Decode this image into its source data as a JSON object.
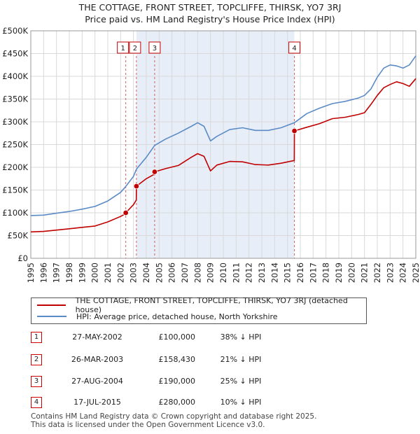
{
  "title_line1": "THE COTTAGE, FRONT STREET, TOPCLIFFE, THIRSK, YO7 3RJ",
  "title_line2": "Price paid vs. HM Land Registry's House Price Index (HPI)",
  "colors": {
    "property": "#c00000",
    "hpi": "#5b8bc7",
    "shade": "#e8eef8",
    "grid": "#d9d9d9"
  },
  "chart_data": {
    "type": "line",
    "xlim": [
      1995,
      2025
    ],
    "ylim": [
      0,
      500000
    ],
    "y_ticks": [
      0,
      50000,
      100000,
      150000,
      200000,
      250000,
      300000,
      350000,
      400000,
      450000,
      500000
    ],
    "y_tick_labels": [
      "£0",
      "£50K",
      "£100K",
      "£150K",
      "£200K",
      "£250K",
      "£300K",
      "£350K",
      "£400K",
      "£450K",
      "£500K"
    ],
    "x_ticks": [
      "1995",
      "1996",
      "1997",
      "1998",
      "1999",
      "2000",
      "2001",
      "2002",
      "2003",
      "2004",
      "2005",
      "2006",
      "2007",
      "2008",
      "2009",
      "2010",
      "2011",
      "2012",
      "2013",
      "2014",
      "2015",
      "2016",
      "2017",
      "2018",
      "2019",
      "2020",
      "2021",
      "2022",
      "2023",
      "2024",
      "2025"
    ],
    "shaded_region": [
      2003.23,
      2015.54
    ],
    "sale_markers": [
      {
        "label": "1",
        "x": 2002.4,
        "y": 100000
      },
      {
        "label": "2",
        "x": 2003.23,
        "y": 158430
      },
      {
        "label": "3",
        "x": 2004.65,
        "y": 190000
      },
      {
        "label": "4",
        "x": 2015.54,
        "y": 280000
      }
    ],
    "series": [
      {
        "name": "THE COTTAGE, FRONT STREET, TOPCLIFFE, THIRSK, YO7 3RJ (detached house)",
        "color": "#c00000",
        "points": [
          [
            1995.0,
            58000
          ],
          [
            1996.0,
            59000
          ],
          [
            1997.0,
            62000
          ],
          [
            1998.0,
            65000
          ],
          [
            1999.0,
            68000
          ],
          [
            2000.0,
            71000
          ],
          [
            2001.0,
            80000
          ],
          [
            2002.0,
            92000
          ],
          [
            2002.39,
            98000
          ],
          [
            2002.4,
            100000
          ],
          [
            2003.0,
            118000
          ],
          [
            2003.22,
            128000
          ],
          [
            2003.23,
            158430
          ],
          [
            2004.0,
            175000
          ],
          [
            2004.64,
            185000
          ],
          [
            2004.65,
            190000
          ],
          [
            2005.5,
            197000
          ],
          [
            2006.5,
            204000
          ],
          [
            2007.5,
            222000
          ],
          [
            2008.0,
            230000
          ],
          [
            2008.5,
            224000
          ],
          [
            2009.0,
            192000
          ],
          [
            2009.5,
            205000
          ],
          [
            2010.5,
            213000
          ],
          [
            2011.5,
            212000
          ],
          [
            2012.5,
            206000
          ],
          [
            2013.5,
            205000
          ],
          [
            2014.5,
            209000
          ],
          [
            2015.53,
            215000
          ],
          [
            2015.54,
            280000
          ],
          [
            2016.5,
            288000
          ],
          [
            2017.5,
            296000
          ],
          [
            2018.5,
            307000
          ],
          [
            2019.5,
            310000
          ],
          [
            2020.5,
            316000
          ],
          [
            2021.0,
            320000
          ],
          [
            2021.5,
            338000
          ],
          [
            2022.0,
            358000
          ],
          [
            2022.5,
            375000
          ],
          [
            2023.0,
            382000
          ],
          [
            2023.5,
            388000
          ],
          [
            2024.0,
            384000
          ],
          [
            2024.5,
            378000
          ],
          [
            2025.0,
            395000
          ]
        ]
      },
      {
        "name": "HPI: Average price, detached house, North Yorkshire",
        "color": "#5b8bc7",
        "points": [
          [
            1995.0,
            94000
          ],
          [
            1996.0,
            95000
          ],
          [
            1997.0,
            99000
          ],
          [
            1998.0,
            103000
          ],
          [
            1999.0,
            108000
          ],
          [
            2000.0,
            114000
          ],
          [
            2001.0,
            126000
          ],
          [
            2002.0,
            145000
          ],
          [
            2002.4,
            158000
          ],
          [
            2003.0,
            180000
          ],
          [
            2003.23,
            196000
          ],
          [
            2004.0,
            222000
          ],
          [
            2004.65,
            248000
          ],
          [
            2005.5,
            262000
          ],
          [
            2006.5,
            275000
          ],
          [
            2007.5,
            290000
          ],
          [
            2008.0,
            298000
          ],
          [
            2008.5,
            290000
          ],
          [
            2009.0,
            258000
          ],
          [
            2009.5,
            268000
          ],
          [
            2010.5,
            283000
          ],
          [
            2011.5,
            287000
          ],
          [
            2012.5,
            281000
          ],
          [
            2013.5,
            281000
          ],
          [
            2014.5,
            287000
          ],
          [
            2015.54,
            298000
          ],
          [
            2016.5,
            318000
          ],
          [
            2017.5,
            330000
          ],
          [
            2018.5,
            340000
          ],
          [
            2019.5,
            345000
          ],
          [
            2020.5,
            352000
          ],
          [
            2021.0,
            358000
          ],
          [
            2021.5,
            372000
          ],
          [
            2022.0,
            398000
          ],
          [
            2022.5,
            418000
          ],
          [
            2023.0,
            425000
          ],
          [
            2023.5,
            423000
          ],
          [
            2024.0,
            418000
          ],
          [
            2024.5,
            425000
          ],
          [
            2025.0,
            445000
          ]
        ]
      }
    ]
  },
  "legend": {
    "property_label": "THE COTTAGE, FRONT STREET, TOPCLIFFE, THIRSK, YO7 3RJ (detached house)",
    "hpi_label": "HPI: Average price, detached house, North Yorkshire"
  },
  "sales": [
    {
      "num": "1",
      "date": "27-MAY-2002",
      "price": "£100,000",
      "hpi": "38% ↓ HPI"
    },
    {
      "num": "2",
      "date": "26-MAR-2003",
      "price": "£158,430",
      "hpi": "21% ↓ HPI"
    },
    {
      "num": "3",
      "date": "27-AUG-2004",
      "price": "£190,000",
      "hpi": "25% ↓ HPI"
    },
    {
      "num": "4",
      "date": "17-JUL-2015",
      "price": "£280,000",
      "hpi": "10% ↓ HPI"
    }
  ],
  "footer": {
    "line1": "Contains HM Land Registry data © Crown copyright and database right 2025.",
    "line2": "This data is licensed under the Open Government Licence v3.0."
  }
}
